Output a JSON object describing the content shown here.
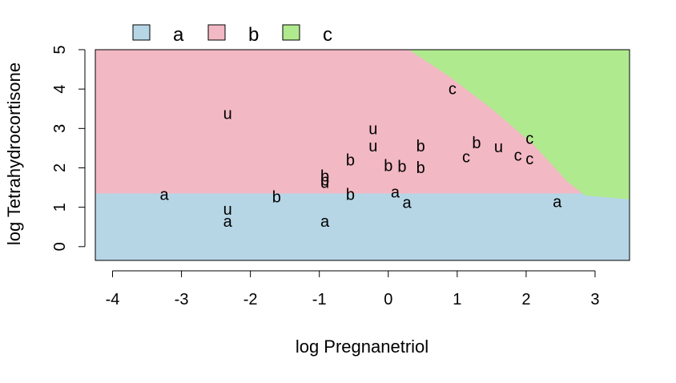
{
  "chart_data": {
    "type": "scatter",
    "subtype": "classification-region",
    "xlabel": "log Pregnanetriol",
    "ylabel": "log Tetrahydrocortisone",
    "xlim": [
      -4.25,
      3.5
    ],
    "ylim": [
      -0.35,
      5.0
    ],
    "xticks": [
      "-4",
      "-3",
      "-2",
      "-1",
      "0",
      "1",
      "2",
      "3"
    ],
    "yticks": [
      "0",
      "1",
      "2",
      "3",
      "4",
      "5"
    ],
    "grid": false,
    "legend": {
      "placement": "top",
      "entries": [
        {
          "label": "a",
          "color": "#b6d6e6"
        },
        {
          "label": "b",
          "color": "#f2b8c4"
        },
        {
          "label": "c",
          "color": "#b0ea8e"
        }
      ]
    },
    "regions": {
      "a_b_boundary_y": 1.35,
      "b_c_boundary": [
        [
          0.3,
          5.0
        ],
        [
          0.9,
          4.3
        ],
        [
          1.5,
          3.5
        ],
        [
          2.1,
          2.6
        ],
        [
          2.6,
          1.65
        ],
        [
          2.85,
          1.3
        ],
        [
          3.5,
          1.2
        ]
      ],
      "colors": {
        "a": "#b6d6e6",
        "b": "#f2b8c4",
        "c": "#b0ea8e"
      }
    },
    "points": [
      {
        "x": -3.25,
        "y": 1.33,
        "label": "a"
      },
      {
        "x": -2.33,
        "y": 0.65,
        "label": "a"
      },
      {
        "x": -0.92,
        "y": 0.65,
        "label": "a"
      },
      {
        "x": 0.1,
        "y": 1.39,
        "label": "a"
      },
      {
        "x": 0.27,
        "y": 1.12,
        "label": "a"
      },
      {
        "x": 2.45,
        "y": 1.15,
        "label": "a"
      },
      {
        "x": -1.62,
        "y": 1.27,
        "label": "b"
      },
      {
        "x": -0.55,
        "y": 1.33,
        "label": "b"
      },
      {
        "x": -0.92,
        "y": 1.8,
        "label": "b"
      },
      {
        "x": -0.92,
        "y": 1.69,
        "label": "b"
      },
      {
        "x": -0.55,
        "y": 2.2,
        "label": "b"
      },
      {
        "x": 0.0,
        "y": 2.06,
        "label": "b"
      },
      {
        "x": 0.2,
        "y": 2.04,
        "label": "b"
      },
      {
        "x": 0.47,
        "y": 2.01,
        "label": "b"
      },
      {
        "x": 0.47,
        "y": 2.56,
        "label": "b"
      },
      {
        "x": 1.28,
        "y": 2.64,
        "label": "b"
      },
      {
        "x": 0.93,
        "y": 4.01,
        "label": "c"
      },
      {
        "x": 1.13,
        "y": 2.28,
        "label": "c"
      },
      {
        "x": 1.88,
        "y": 2.33,
        "label": "c"
      },
      {
        "x": 2.05,
        "y": 2.23,
        "label": "c"
      },
      {
        "x": 2.05,
        "y": 2.75,
        "label": "c"
      },
      {
        "x": -2.33,
        "y": 3.38,
        "label": "u"
      },
      {
        "x": -2.33,
        "y": 0.95,
        "label": "u"
      },
      {
        "x": -0.92,
        "y": 1.63,
        "label": "u"
      },
      {
        "x": -0.22,
        "y": 3.0,
        "label": "u"
      },
      {
        "x": -0.22,
        "y": 2.56,
        "label": "u"
      },
      {
        "x": 1.6,
        "y": 2.54,
        "label": "u"
      }
    ]
  }
}
